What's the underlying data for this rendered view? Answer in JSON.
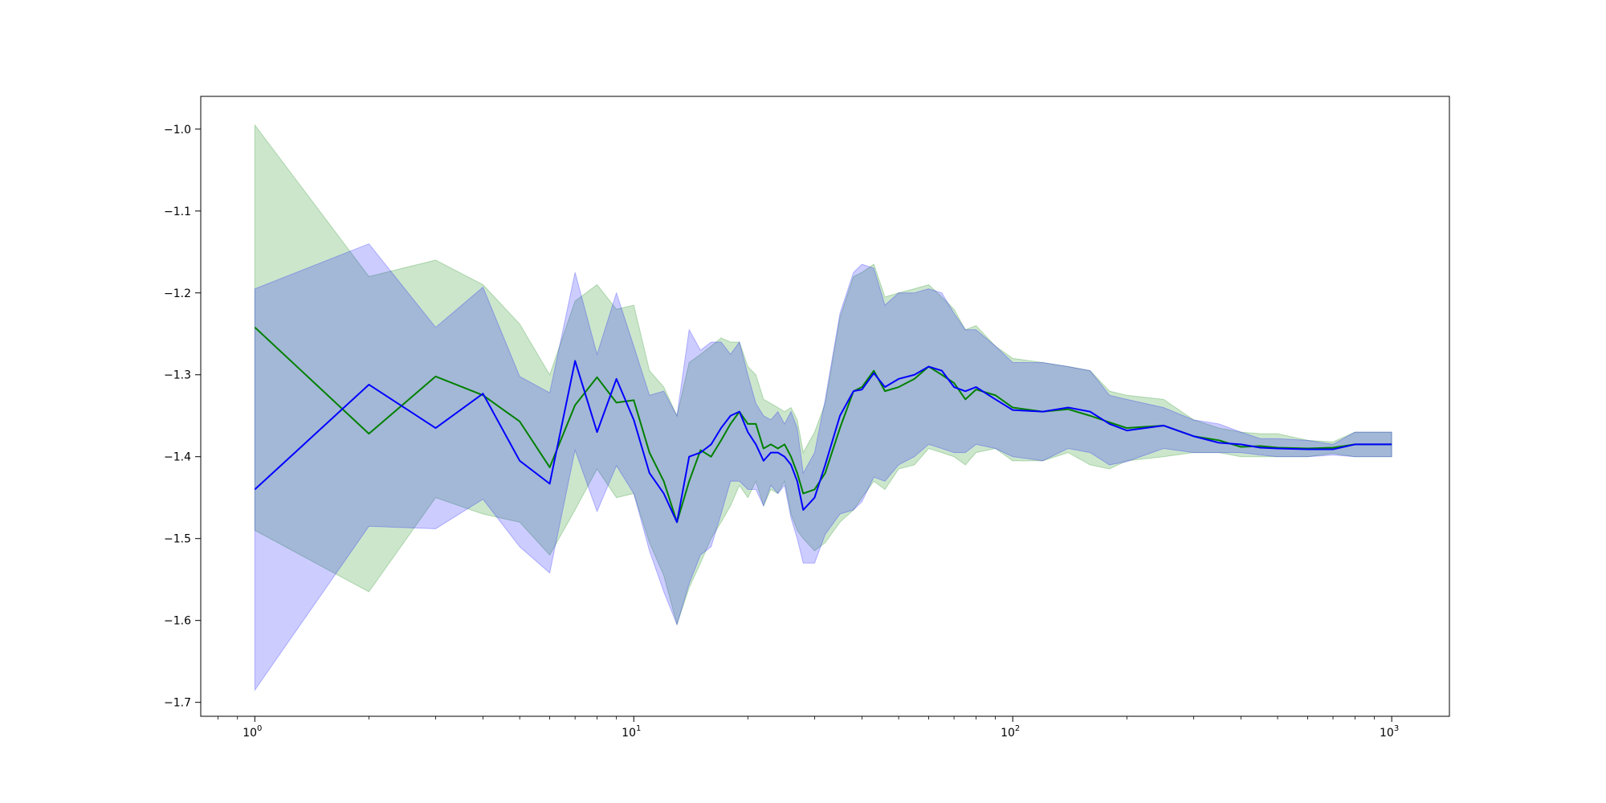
{
  "chart_data": {
    "type": "line",
    "xscale": "log",
    "xlim": [
      0.72,
      1420
    ],
    "ylim": [
      -1.717,
      -0.96
    ],
    "grid": false,
    "xticks": [
      {
        "value": 1,
        "base": "10",
        "exp": "0"
      },
      {
        "value": 10,
        "base": "10",
        "exp": "1"
      },
      {
        "value": 100,
        "base": "10",
        "exp": "2"
      },
      {
        "value": 1000,
        "base": "10",
        "exp": "3"
      }
    ],
    "yticks": [
      {
        "value": -1.0,
        "label": "−1.0"
      },
      {
        "value": -1.1,
        "label": "−1.1"
      },
      {
        "value": -1.2,
        "label": "−1.2"
      },
      {
        "value": -1.3,
        "label": "−1.3"
      },
      {
        "value": -1.4,
        "label": "−1.4"
      },
      {
        "value": -1.5,
        "label": "−1.5"
      },
      {
        "value": -1.6,
        "label": "−1.6"
      },
      {
        "value": -1.7,
        "label": "−1.7"
      }
    ],
    "series": [
      {
        "color": "#008000",
        "fill_color": "#008000",
        "fill_opacity": 0.2,
        "x": [
          1,
          2,
          3,
          4,
          5,
          6,
          7,
          8,
          9,
          10,
          11,
          12,
          13,
          14,
          15,
          16,
          17,
          18,
          19,
          20,
          21,
          22,
          23,
          24,
          25,
          26,
          27,
          28,
          30,
          32,
          35,
          38,
          40,
          43,
          46,
          50,
          55,
          60,
          65,
          70,
          75,
          80,
          90,
          100,
          120,
          140,
          160,
          180,
          200,
          250,
          300,
          350,
          400,
          450,
          500,
          600,
          700,
          800,
          1000
        ],
        "y": [
          -1.242,
          -1.372,
          -1.302,
          -1.325,
          -1.357,
          -1.413,
          -1.337,
          -1.303,
          -1.334,
          -1.331,
          -1.395,
          -1.43,
          -1.48,
          -1.43,
          -1.392,
          -1.4,
          -1.38,
          -1.36,
          -1.345,
          -1.36,
          -1.36,
          -1.39,
          -1.385,
          -1.39,
          -1.385,
          -1.4,
          -1.42,
          -1.445,
          -1.44,
          -1.42,
          -1.365,
          -1.32,
          -1.315,
          -1.295,
          -1.32,
          -1.315,
          -1.305,
          -1.29,
          -1.3,
          -1.31,
          -1.33,
          -1.318,
          -1.325,
          -1.34,
          -1.345,
          -1.342,
          -1.35,
          -1.358,
          -1.365,
          -1.362,
          -1.375,
          -1.38,
          -1.388,
          -1.387,
          -1.389,
          -1.39,
          -1.389,
          -1.385,
          -1.385
        ],
        "upper": [
          -0.995,
          -1.18,
          -1.16,
          -1.19,
          -1.238,
          -1.3,
          -1.21,
          -1.19,
          -1.22,
          -1.215,
          -1.295,
          -1.315,
          -1.35,
          -1.285,
          -1.275,
          -1.265,
          -1.255,
          -1.26,
          -1.26,
          -1.29,
          -1.3,
          -1.33,
          -1.335,
          -1.34,
          -1.345,
          -1.34,
          -1.355,
          -1.395,
          -1.37,
          -1.335,
          -1.23,
          -1.18,
          -1.175,
          -1.165,
          -1.205,
          -1.2,
          -1.195,
          -1.19,
          -1.205,
          -1.22,
          -1.245,
          -1.24,
          -1.265,
          -1.28,
          -1.285,
          -1.29,
          -1.295,
          -1.32,
          -1.325,
          -1.33,
          -1.355,
          -1.365,
          -1.37,
          -1.372,
          -1.372,
          -1.38,
          -1.382,
          -1.37,
          -1.37
        ],
        "lower": [
          -1.49,
          -1.565,
          -1.45,
          -1.47,
          -1.48,
          -1.52,
          -1.465,
          -1.415,
          -1.45,
          -1.445,
          -1.505,
          -1.545,
          -1.605,
          -1.56,
          -1.53,
          -1.5,
          -1.48,
          -1.46,
          -1.435,
          -1.45,
          -1.43,
          -1.46,
          -1.44,
          -1.445,
          -1.43,
          -1.47,
          -1.49,
          -1.5,
          -1.515,
          -1.505,
          -1.48,
          -1.465,
          -1.45,
          -1.43,
          -1.44,
          -1.415,
          -1.41,
          -1.39,
          -1.395,
          -1.4,
          -1.41,
          -1.395,
          -1.39,
          -1.405,
          -1.405,
          -1.395,
          -1.41,
          -1.415,
          -1.405,
          -1.4,
          -1.395,
          -1.395,
          -1.4,
          -1.4,
          -1.4,
          -1.4,
          -1.396,
          -1.4,
          -1.4
        ]
      },
      {
        "color": "#0000ff",
        "fill_color": "#0000ff",
        "fill_opacity": 0.2,
        "x": [
          1,
          2,
          3,
          4,
          5,
          6,
          7,
          8,
          9,
          10,
          11,
          12,
          13,
          14,
          15,
          16,
          17,
          18,
          19,
          20,
          21,
          22,
          23,
          24,
          25,
          26,
          27,
          28,
          30,
          32,
          35,
          38,
          40,
          43,
          46,
          50,
          55,
          60,
          65,
          70,
          75,
          80,
          90,
          100,
          120,
          140,
          160,
          180,
          200,
          250,
          300,
          350,
          400,
          450,
          500,
          600,
          700,
          800,
          1000
        ],
        "y": [
          -1.44,
          -1.312,
          -1.365,
          -1.323,
          -1.405,
          -1.433,
          -1.283,
          -1.37,
          -1.305,
          -1.355,
          -1.42,
          -1.445,
          -1.48,
          -1.4,
          -1.395,
          -1.385,
          -1.365,
          -1.35,
          -1.345,
          -1.37,
          -1.385,
          -1.405,
          -1.395,
          -1.395,
          -1.4,
          -1.41,
          -1.43,
          -1.465,
          -1.45,
          -1.41,
          -1.35,
          -1.32,
          -1.318,
          -1.298,
          -1.315,
          -1.305,
          -1.3,
          -1.29,
          -1.295,
          -1.315,
          -1.32,
          -1.315,
          -1.33,
          -1.343,
          -1.345,
          -1.34,
          -1.345,
          -1.36,
          -1.368,
          -1.362,
          -1.375,
          -1.383,
          -1.385,
          -1.389,
          -1.39,
          -1.391,
          -1.391,
          -1.385,
          -1.385
        ],
        "upper": [
          -1.195,
          -1.14,
          -1.242,
          -1.193,
          -1.302,
          -1.322,
          -1.175,
          -1.275,
          -1.2,
          -1.265,
          -1.325,
          -1.32,
          -1.35,
          -1.245,
          -1.27,
          -1.26,
          -1.26,
          -1.275,
          -1.26,
          -1.3,
          -1.335,
          -1.35,
          -1.355,
          -1.345,
          -1.36,
          -1.345,
          -1.365,
          -1.42,
          -1.395,
          -1.33,
          -1.225,
          -1.175,
          -1.165,
          -1.17,
          -1.215,
          -1.2,
          -1.2,
          -1.195,
          -1.2,
          -1.225,
          -1.245,
          -1.245,
          -1.265,
          -1.285,
          -1.285,
          -1.29,
          -1.295,
          -1.325,
          -1.33,
          -1.34,
          -1.355,
          -1.36,
          -1.37,
          -1.378,
          -1.378,
          -1.38,
          -1.385,
          -1.37,
          -1.37
        ],
        "lower": [
          -1.685,
          -1.485,
          -1.488,
          -1.452,
          -1.51,
          -1.542,
          -1.392,
          -1.467,
          -1.411,
          -1.445,
          -1.515,
          -1.565,
          -1.605,
          -1.555,
          -1.52,
          -1.51,
          -1.47,
          -1.43,
          -1.43,
          -1.44,
          -1.44,
          -1.46,
          -1.435,
          -1.445,
          -1.435,
          -1.475,
          -1.5,
          -1.53,
          -1.53,
          -1.495,
          -1.47,
          -1.465,
          -1.455,
          -1.425,
          -1.43,
          -1.41,
          -1.4,
          -1.385,
          -1.39,
          -1.395,
          -1.395,
          -1.385,
          -1.39,
          -1.4,
          -1.405,
          -1.39,
          -1.395,
          -1.41,
          -1.406,
          -1.39,
          -1.395,
          -1.395,
          -1.395,
          -1.398,
          -1.4,
          -1.4,
          -1.398,
          -1.4,
          -1.4
        ]
      }
    ]
  }
}
